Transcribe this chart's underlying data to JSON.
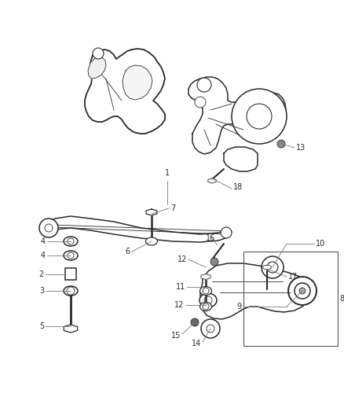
{
  "background_color": "#ffffff",
  "line_color": "#2a2a2a",
  "label_color": "#2a2a2a",
  "figsize": [
    4.38,
    5.33
  ],
  "dpi": 100,
  "lw_main": 1.1,
  "lw_thin": 0.6,
  "fs": 7.0
}
